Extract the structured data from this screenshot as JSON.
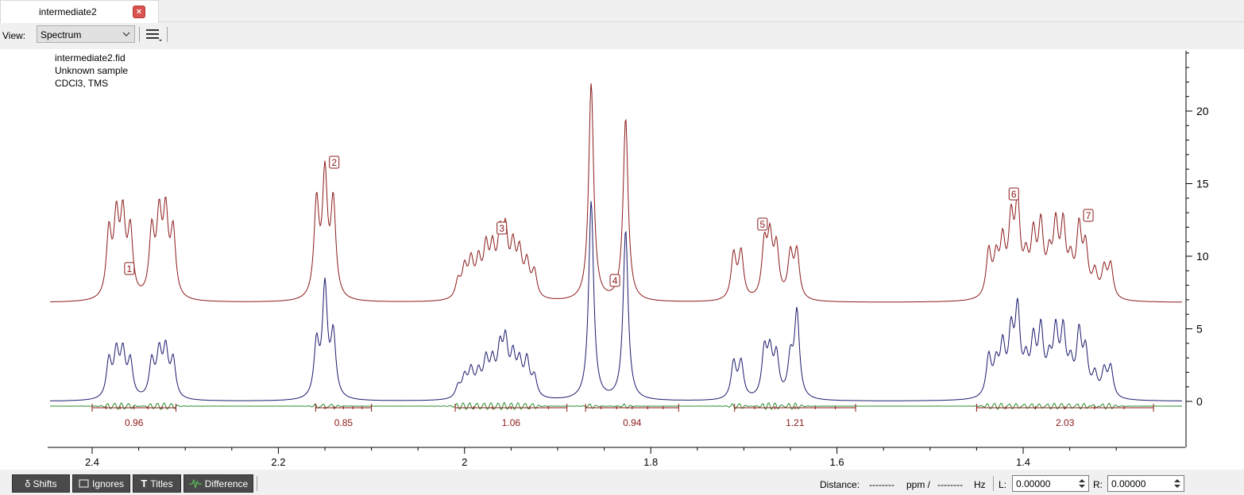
{
  "tab": {
    "title": "intermediate2",
    "close_icon": "close-icon"
  },
  "toolbar": {
    "view_label": "View:",
    "view_value": "Spectrum"
  },
  "info": {
    "line1": "intermediate2.fid",
    "line2": "Unknown sample",
    "line3": "CDCl3, TMS"
  },
  "colors": {
    "simulated": "#8b1a1a",
    "experimental": "#1a1a6e",
    "difference": "#2e8b2e",
    "integral": "#8b1a1a"
  },
  "axis": {
    "x_ticks": [
      "2.4",
      "2.2",
      "2",
      "1.8",
      "1.6",
      "1.4"
    ],
    "y_ticks": [
      "0",
      "5",
      "10",
      "15",
      "20"
    ]
  },
  "peaks": [
    {
      "label": "1",
      "ppm": 2.36
    },
    {
      "label": "2",
      "ppm": 2.14
    },
    {
      "label": "3",
      "ppm": 1.96
    },
    {
      "label": "4",
      "ppm": 1.83
    },
    {
      "label": "5",
      "ppm": 1.68
    },
    {
      "label": "6",
      "ppm": 1.41
    },
    {
      "label": "7",
      "ppm": 1.33
    }
  ],
  "integrals": [
    {
      "value": "0.96",
      "from": 2.4,
      "to": 2.31
    },
    {
      "value": "0.85",
      "from": 2.16,
      "to": 2.1
    },
    {
      "value": "1.06",
      "from": 2.01,
      "to": 1.89
    },
    {
      "value": "0.94",
      "from": 1.87,
      "to": 1.77
    },
    {
      "value": "1.21",
      "from": 1.71,
      "to": 1.58
    },
    {
      "value": "2.03",
      "from": 1.45,
      "to": 1.26
    }
  ],
  "bottombar": {
    "shifts_label": "δ Shifts",
    "ignores_label": "Ignores",
    "titles_label": "Titles",
    "difference_label": "Difference",
    "distance_label": "Distance:",
    "ppm_dashes": "--------",
    "ppm_unit": "ppm /",
    "hz_dashes": "--------",
    "hz_unit": "Hz",
    "left_label": "L:",
    "left_value": "0.00000",
    "right_label": "R:",
    "right_value": "0.00000"
  }
}
